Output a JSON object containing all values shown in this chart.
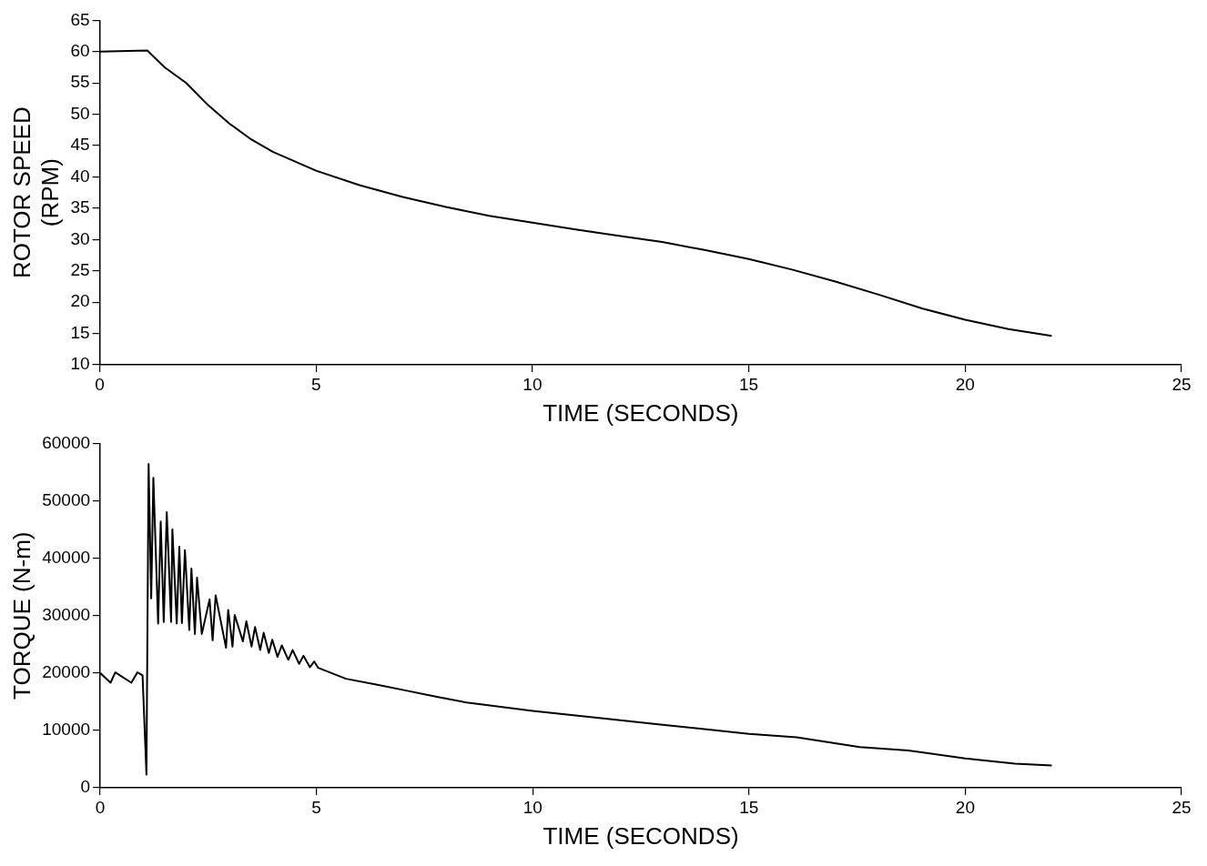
{
  "chart_data": [
    {
      "type": "line",
      "xlabel": "TIME (SECONDS)",
      "ylabel": "ROTOR SPEED\n(RPM)",
      "xlim": [
        0,
        25
      ],
      "xticks": [
        0,
        5,
        10,
        15,
        20,
        25
      ],
      "ylim": [
        10,
        65
      ],
      "yticks": [
        10,
        15,
        20,
        25,
        30,
        35,
        40,
        45,
        50,
        55,
        60,
        65
      ],
      "grid": false,
      "legend": false,
      "marker": "none",
      "series": [
        {
          "color": "#000000",
          "x": [
            0,
            1.1,
            1.5,
            2,
            2.5,
            3,
            3.5,
            4,
            5,
            6,
            7,
            8,
            9,
            10,
            11,
            12,
            13,
            14,
            15,
            16,
            17,
            18,
            19,
            20,
            21,
            22
          ],
          "values": [
            60,
            60.2,
            57.5,
            55,
            51.5,
            48.5,
            46,
            44,
            41,
            38.7,
            36.8,
            35.2,
            33.8,
            32.7,
            31.6,
            30.6,
            29.6,
            28.3,
            26.9,
            25.2,
            23.3,
            21.2,
            19,
            17.2,
            15.7,
            14.6
          ]
        }
      ]
    },
    {
      "type": "line",
      "xlabel": "TIME (SECONDS)",
      "ylabel": "TORQUE (N-m)",
      "xlim": [
        0,
        25
      ],
      "xticks": [
        0,
        5,
        10,
        15,
        20,
        25
      ],
      "ylim": [
        0,
        60000
      ],
      "yticks": [
        0,
        10000,
        20000,
        30000,
        40000,
        50000,
        60000
      ],
      "grid": false,
      "legend": false,
      "marker": "none",
      "series": [
        {
          "color": "#000000",
          "x": [
            0,
            0.24,
            0.35,
            0.72,
            0.86,
            0.98,
            1.07,
            1.12,
            1.18,
            1.23,
            1.34,
            1.4,
            1.47,
            1.54,
            1.64,
            1.67,
            1.77,
            1.83,
            1.89,
            1.96,
            2.06,
            2.11,
            2.19,
            2.24,
            2.35,
            2.53,
            2.6,
            2.67,
            2.91,
            2.96,
            3.06,
            3.11,
            3.3,
            3.38,
            3.5,
            3.58,
            3.7,
            3.78,
            3.9,
            3.98,
            4.1,
            4.2,
            4.35,
            4.45,
            4.6,
            4.7,
            4.85,
            4.95,
            5.04,
            5.68,
            6.38,
            7.1,
            7.81,
            8.51,
            10,
            11.73,
            12.85,
            15,
            16.1,
            17.56,
            18.68,
            20,
            21.15,
            22
          ],
          "values": [
            20000,
            18300,
            20100,
            18300,
            20100,
            19600,
            2300,
            56400,
            33000,
            54000,
            28600,
            46400,
            28900,
            48000,
            28900,
            45000,
            28600,
            42000,
            28700,
            41400,
            27500,
            38200,
            26800,
            36600,
            26800,
            32800,
            25700,
            33500,
            24400,
            31000,
            24600,
            30100,
            25500,
            29000,
            24600,
            28000,
            24000,
            27000,
            23500,
            25800,
            22800,
            24800,
            22300,
            24000,
            21600,
            23000,
            21000,
            22000,
            20900,
            19000,
            18000,
            16900,
            15800,
            14800,
            13400,
            12000,
            11100,
            9400,
            8800,
            7100,
            6500,
            5100,
            4200,
            3900
          ]
        }
      ]
    }
  ]
}
